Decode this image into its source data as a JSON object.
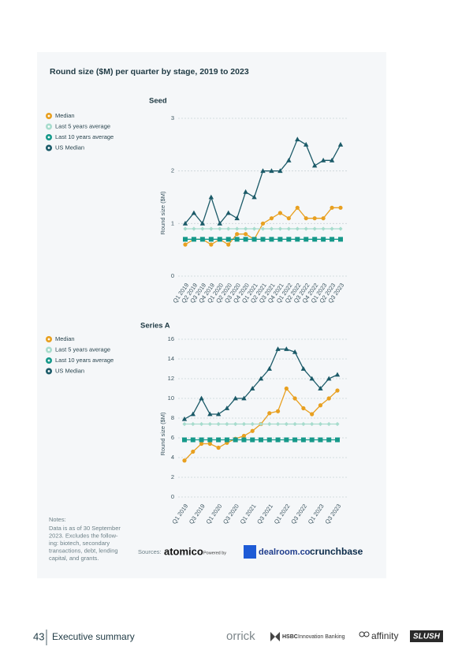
{
  "header": {
    "title": "Round size ($M) per quarter by stage, 2019 to 2023"
  },
  "chart_data": [
    {
      "type": "line",
      "title": "Seed",
      "y_label": "Round size ($M)",
      "categories": [
        "Q1 2019",
        "Q2 2019",
        "Q3 2019",
        "Q4 2019",
        "Q1 2020",
        "Q2 2020",
        "Q3 2020",
        "Q4 2020",
        "Q1 2021",
        "Q2 2021",
        "Q3 2021",
        "Q4 2021",
        "Q1 2022",
        "Q2 2022",
        "Q3 2022",
        "Q4 2022",
        "Q1 2023",
        "Q2 2023",
        "Q3 2023"
      ],
      "ylim": [
        0,
        3
      ],
      "yticks": [
        0,
        1,
        2,
        3
      ],
      "grid": true,
      "series": [
        {
          "name": "Median",
          "color": "#e8a020",
          "marker": "circle",
          "values": [
            0.6,
            0.7,
            0.7,
            0.6,
            0.7,
            0.6,
            0.8,
            0.8,
            0.7,
            1.0,
            1.1,
            1.2,
            1.1,
            1.3,
            1.1,
            1.1,
            1.1,
            1.3,
            1.3
          ]
        },
        {
          "name": "Last 5 years average",
          "color": "#a7dccd",
          "marker": "diamond",
          "values": [
            0.9,
            0.9,
            0.9,
            0.9,
            0.9,
            0.9,
            0.9,
            0.9,
            0.9,
            0.9,
            0.9,
            0.9,
            0.9,
            0.9,
            0.9,
            0.9,
            0.9,
            0.9,
            0.9
          ]
        },
        {
          "name": "Last 10 years average",
          "color": "#16998a",
          "marker": "square",
          "values": [
            0.7,
            0.7,
            0.7,
            0.7,
            0.7,
            0.7,
            0.7,
            0.7,
            0.7,
            0.7,
            0.7,
            0.7,
            0.7,
            0.7,
            0.7,
            0.7,
            0.7,
            0.7,
            0.7
          ]
        },
        {
          "name": "US Median",
          "color": "#1b5a68",
          "marker": "triangle",
          "values": [
            1.0,
            1.2,
            1.0,
            1.5,
            1.0,
            1.2,
            1.1,
            1.6,
            1.5,
            2.0,
            2.0,
            2.0,
            2.2,
            2.6,
            2.5,
            2.1,
            2.2,
            2.2,
            2.5
          ]
        }
      ]
    },
    {
      "type": "line",
      "title": "Series A",
      "y_label": "Round size ($M)",
      "categories": [
        "Q1 2019",
        null,
        "Q3 2019",
        null,
        "Q1 2020",
        null,
        "Q3 2020",
        null,
        "Q1 2021",
        null,
        "Q3 2021",
        null,
        "Q1 2022",
        null,
        "Q3 2022",
        null,
        "Q1 2023",
        null,
        "Q3 2023"
      ],
      "ylim": [
        0,
        16
      ],
      "yticks": [
        0,
        2,
        4,
        6,
        8,
        10,
        12,
        14,
        16
      ],
      "grid": true,
      "series": [
        {
          "name": "Median",
          "color": "#e8a020",
          "marker": "circle",
          "values": [
            3.7,
            4.6,
            5.4,
            5.4,
            5.0,
            5.5,
            5.9,
            6.2,
            6.7,
            7.4,
            8.5,
            8.7,
            11.0,
            10.0,
            9.0,
            8.4,
            9.3,
            10.0,
            10.8
          ]
        },
        {
          "name": "Last 5 years average",
          "color": "#a7dccd",
          "marker": "diamond",
          "values": [
            7.4,
            7.4,
            7.4,
            7.4,
            7.4,
            7.4,
            7.4,
            7.4,
            7.4,
            7.4,
            7.4,
            7.4,
            7.4,
            7.4,
            7.4,
            7.4,
            7.4,
            7.4,
            7.4
          ]
        },
        {
          "name": "Last 10 years average",
          "color": "#16998a",
          "marker": "square",
          "values": [
            5.8,
            5.8,
            5.8,
            5.8,
            5.8,
            5.8,
            5.8,
            5.8,
            5.8,
            5.8,
            5.8,
            5.8,
            5.8,
            5.8,
            5.8,
            5.8,
            5.8,
            5.8,
            5.8
          ]
        },
        {
          "name": "US Median",
          "color": "#1b5a68",
          "marker": "triangle",
          "values": [
            7.9,
            8.4,
            10.0,
            8.4,
            8.4,
            9.0,
            10.0,
            10.0,
            11.0,
            12.0,
            13.0,
            15.0,
            15.0,
            14.7,
            13.0,
            12.0,
            11.0,
            12.0,
            12.4
          ]
        }
      ]
    }
  ],
  "notes": {
    "label": "Notes:",
    "lines": [
      "Data is as of 30 September",
      "2023. Excludes the follow-",
      "ing: biotech, secondary",
      "transactions, debt, lending",
      "capital, and grants."
    ]
  },
  "sources": {
    "label": "Sources:",
    "atomico": "atomico",
    "powered": "Powered by",
    "dealroom": "dealroom.co",
    "crunchbase": "crunchbase"
  },
  "footer": {
    "page": "43",
    "section": "Executive summary",
    "orrick": "orrick",
    "hsbc": "HSBC",
    "hsbc_unit": "Innovation Banking",
    "affinity": "affinity",
    "slush": "SLUSH"
  }
}
